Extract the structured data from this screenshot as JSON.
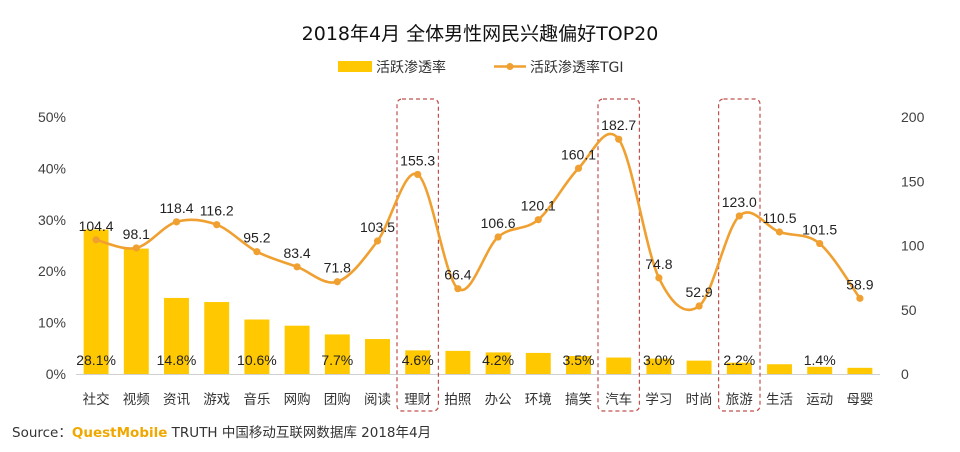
{
  "chart_data": {
    "type": "bar+line",
    "title": "2018年4月 全体男性网民兴趣偏好TOP20",
    "categories": [
      "社交",
      "视频",
      "资讯",
      "游戏",
      "音乐",
      "网购",
      "团购",
      "阅读",
      "理财",
      "拍照",
      "办公",
      "环境",
      "搞笑",
      "汽车",
      "学习",
      "时尚",
      "旅游",
      "生活",
      "运动",
      "母婴"
    ],
    "series": [
      {
        "name": "活跃渗透率",
        "type": "bar",
        "axis": "left",
        "values": [
          28.1,
          24.4,
          14.8,
          14.0,
          10.6,
          9.4,
          7.7,
          6.8,
          4.6,
          4.5,
          4.2,
          4.1,
          3.5,
          3.2,
          3.0,
          2.6,
          2.2,
          1.9,
          1.4,
          1.2
        ],
        "data_labels": {
          "0": "28.1%",
          "2": "14.8%",
          "4": "10.6%",
          "6": "7.7%",
          "8": "4.6%",
          "10": "4.2%",
          "12": "3.5%",
          "14": "3.0%",
          "16": "2.2%",
          "18": "1.4%"
        }
      },
      {
        "name": "活跃渗透率TGI",
        "type": "line",
        "axis": "right",
        "values": [
          104.4,
          98.1,
          118.4,
          116.2,
          95.2,
          83.4,
          71.8,
          103.5,
          155.3,
          66.4,
          106.6,
          120.1,
          160.1,
          182.7,
          74.8,
          52.9,
          123.0,
          110.5,
          101.5,
          58.9
        ],
        "data_labels": [
          "104.4",
          "98.1",
          "118.4",
          "116.2",
          "95.2",
          "83.4",
          "71.8",
          "103.5",
          "155.3",
          "66.4",
          "106.6",
          "120.1",
          "160.1",
          "182.7",
          "74.8",
          "52.9",
          "123.0",
          "110.5",
          "101.5",
          "58.9"
        ]
      }
    ],
    "y_left": {
      "min": 0,
      "max": 50,
      "ticks": [
        "0%",
        "10%",
        "20%",
        "30%",
        "40%",
        "50%"
      ]
    },
    "y_right": {
      "min": 0,
      "max": 200,
      "ticks": [
        "0",
        "50",
        "100",
        "150",
        "200"
      ]
    },
    "highlighted_categories": [
      "理财",
      "汽车",
      "旅游"
    ],
    "legend_position": "top-center",
    "grid": false,
    "colors": {
      "bar": "#FFC800",
      "line": "#F0A030",
      "highlight": "#C0504D",
      "brand": "#F0A800"
    }
  },
  "source": {
    "prefix": "Source：",
    "brand": "QuestMobile",
    "rest": " TRUTH 中国移动互联网数据库 2018年4月"
  }
}
